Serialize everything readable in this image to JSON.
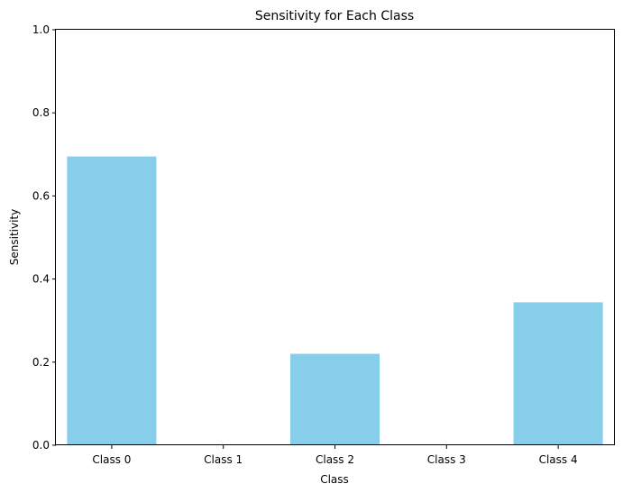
{
  "chart_data": {
    "type": "bar",
    "title": "Sensitivity for Each Class",
    "xlabel": "Class",
    "ylabel": "Sensitivity",
    "categories": [
      "Class 0",
      "Class 1",
      "Class 2",
      "Class 3",
      "Class 4"
    ],
    "values": [
      0.695,
      0.0,
      0.22,
      0.0,
      0.344
    ],
    "ylim": [
      0,
      1
    ],
    "yticks": [
      "0.0",
      "0.2",
      "0.4",
      "0.6",
      "0.8",
      "1.0"
    ],
    "grid": false,
    "bar_color": "#87CEEB"
  }
}
